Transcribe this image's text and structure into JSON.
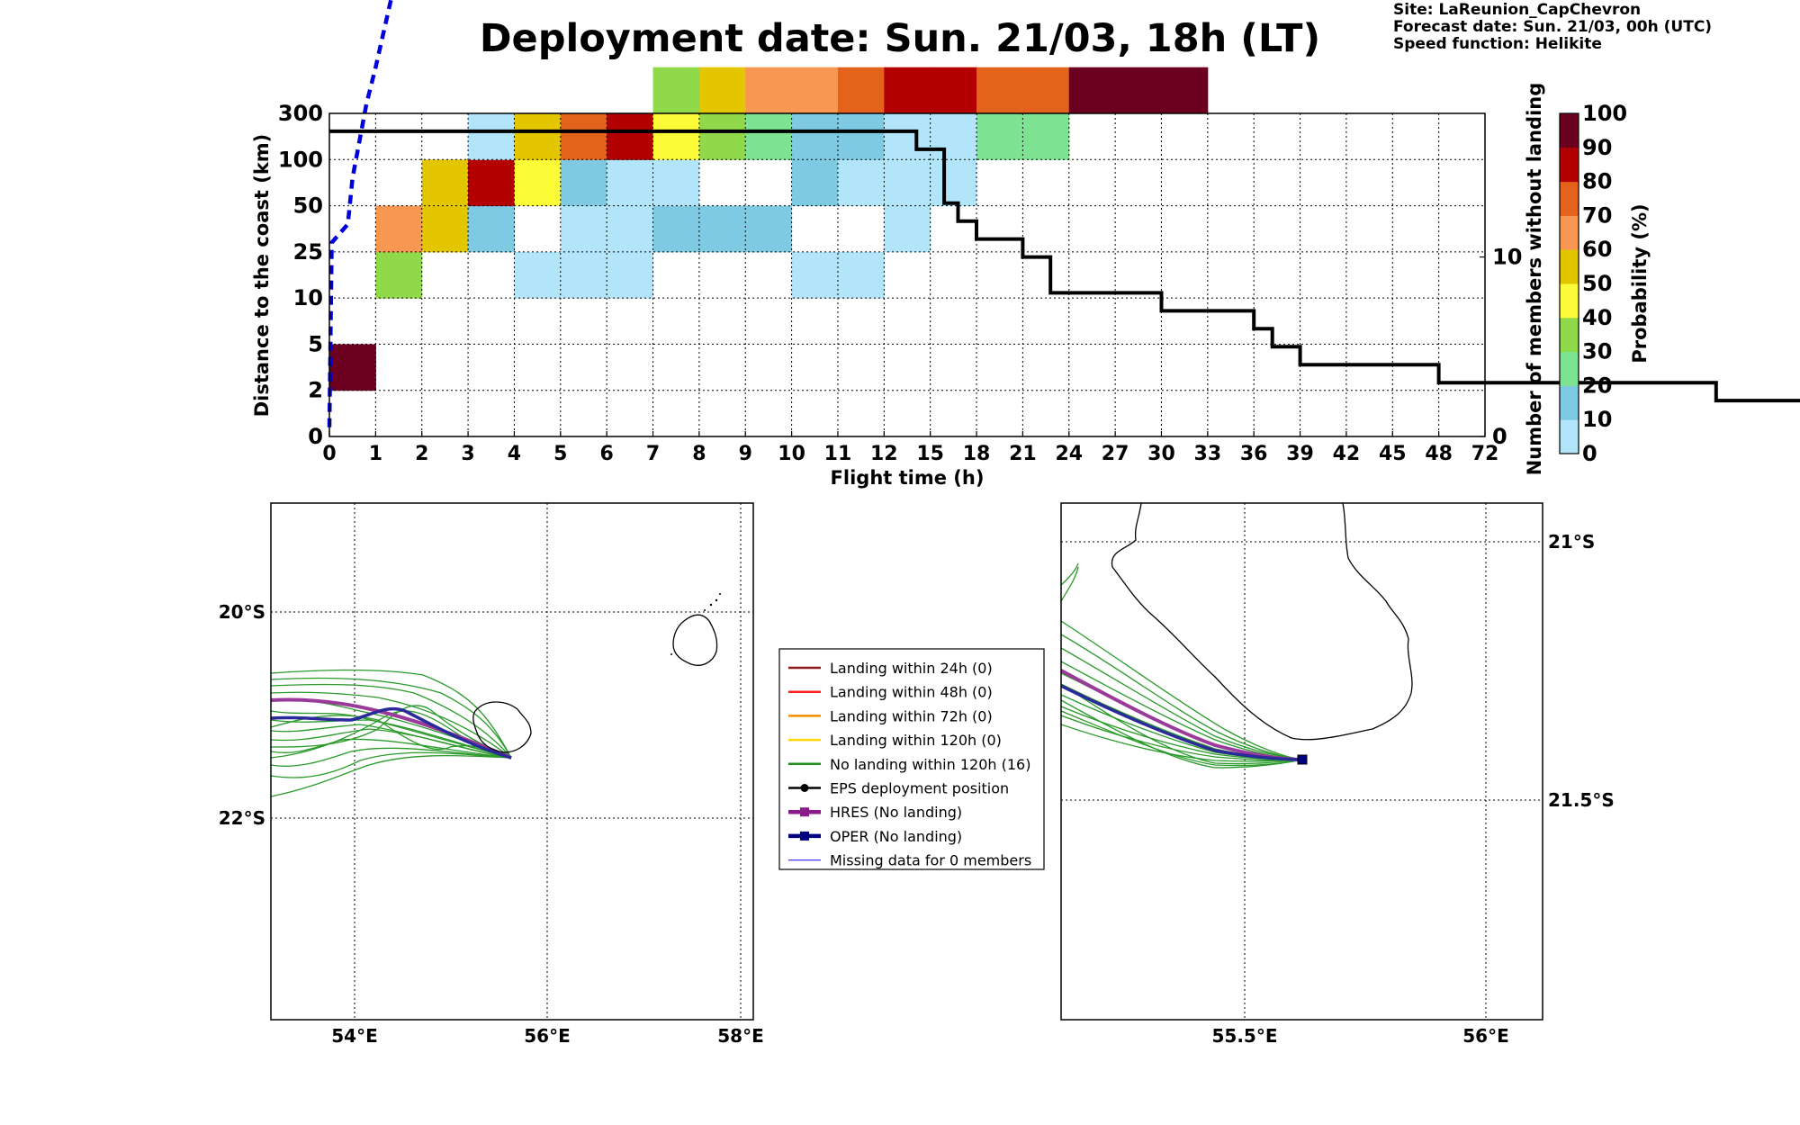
{
  "header": {
    "title": "Deployment date: Sun. 21/03, 18h (LT)",
    "site": "Site: LaReunion_CapChevron",
    "forecast": "Forecast date: Sun. 21/03, 00h (UTC)",
    "speed": "Speed function: Helikite"
  },
  "chart_data": [
    {
      "type": "heatmap",
      "xlabel": "Flight time (h)",
      "ylabel": "Distance to the coast (km)",
      "y2label": "Number of members without landing",
      "x_ticks": [
        "0",
        "1",
        "2",
        "3",
        "4",
        "5",
        "6",
        "7",
        "8",
        "9",
        "10",
        "11",
        "12",
        "15",
        "18",
        "21",
        "24",
        "27",
        "30",
        "33",
        "36",
        "39",
        "42",
        "45",
        "48",
        "72"
      ],
      "y_ticks": [
        "0",
        "2",
        "5",
        "10",
        "25",
        "50",
        "100",
        "300"
      ],
      "y2_ticks": [
        "0",
        "10"
      ],
      "y2_range": [
        0,
        18
      ],
      "colorbar": {
        "label": "Probability (%)",
        "ticks": [
          "0",
          "10",
          "20",
          "30",
          "40",
          "50",
          "60",
          "70",
          "80",
          "90",
          "100"
        ],
        "colors": [
          "#b3e5fa",
          "#7ecae3",
          "#7de393",
          "#8fd94a",
          "#fbfb37",
          "#e3c600",
          "#f89751",
          "#e3621c",
          "#b30000",
          "#6b0021"
        ]
      },
      "cells": [
        {
          "x": 0,
          "y": 1,
          "p": 95
        },
        {
          "x": 1,
          "y": 3,
          "p": 35
        },
        {
          "x": 1,
          "y": 4,
          "p": 65
        },
        {
          "x": 2,
          "y": 4,
          "p": 55
        },
        {
          "x": 2,
          "y": 5,
          "p": 55
        },
        {
          "x": 3,
          "y": 4,
          "p": 15
        },
        {
          "x": 3,
          "y": 5,
          "p": 85
        },
        {
          "x": 3,
          "y": 6,
          "p": 5
        },
        {
          "x": 4,
          "y": 3,
          "p": 5
        },
        {
          "x": 4,
          "y": 5,
          "p": 45
        },
        {
          "x": 4,
          "y": 6,
          "p": 55
        },
        {
          "x": 5,
          "y": 3,
          "p": 5
        },
        {
          "x": 5,
          "y": 4,
          "p": 5
        },
        {
          "x": 5,
          "y": 5,
          "p": 15
        },
        {
          "x": 5,
          "y": 6,
          "p": 75
        },
        {
          "x": 6,
          "y": 3,
          "p": 5
        },
        {
          "x": 6,
          "y": 4,
          "p": 5
        },
        {
          "x": 6,
          "y": 5,
          "p": 5
        },
        {
          "x": 6,
          "y": 6,
          "p": 85
        },
        {
          "x": 7,
          "y": 4,
          "p": 15
        },
        {
          "x": 7,
          "y": 5,
          "p": 5
        },
        {
          "x": 7,
          "y": 6,
          "p": 45
        },
        {
          "x": 7,
          "y": 7,
          "p": 35
        },
        {
          "x": 8,
          "y": 4,
          "p": 15
        },
        {
          "x": 8,
          "y": 6,
          "p": 35
        },
        {
          "x": 8,
          "y": 7,
          "p": 55
        },
        {
          "x": 9,
          "y": 4,
          "p": 15
        },
        {
          "x": 9,
          "y": 6,
          "p": 25
        },
        {
          "x": 9,
          "y": 7,
          "p": 65
        },
        {
          "x": 10,
          "y": 3,
          "p": 5
        },
        {
          "x": 10,
          "y": 5,
          "p": 15
        },
        {
          "x": 10,
          "y": 6,
          "p": 15
        },
        {
          "x": 10,
          "y": 7,
          "p": 65
        },
        {
          "x": 11,
          "y": 3,
          "p": 5
        },
        {
          "x": 11,
          "y": 5,
          "p": 5
        },
        {
          "x": 11,
          "y": 6,
          "p": 15
        },
        {
          "x": 11,
          "y": 7,
          "p": 75
        },
        {
          "x": 12,
          "y": 4,
          "p": 5
        },
        {
          "x": 12,
          "y": 5,
          "p": 5
        },
        {
          "x": 12,
          "y": 6,
          "p": 5
        },
        {
          "x": 12,
          "y": 7,
          "p": 85
        },
        {
          "x": 13,
          "y": 5,
          "p": 5
        },
        {
          "x": 13,
          "y": 6,
          "p": 5
        },
        {
          "x": 13,
          "y": 7,
          "p": 85
        },
        {
          "x": 14,
          "y": 6,
          "p": 25
        },
        {
          "x": 14,
          "y": 7,
          "p": 75
        },
        {
          "x": 15,
          "y": 6,
          "p": 25
        },
        {
          "x": 15,
          "y": 7,
          "p": 75
        },
        {
          "x": 16,
          "y": 7,
          "p": 95
        },
        {
          "x": 17,
          "y": 7,
          "p": 95
        },
        {
          "x": 18,
          "y": 7,
          "p": 95
        }
      ],
      "series": [
        {
          "name": "",
          "style": "dashed",
          "color": "#0000dd",
          "points": [
            [
              0,
              0.2
            ],
            [
              0.05,
              4.2
            ],
            [
              0.4,
              4.6
            ],
            [
              0.5,
              5.6
            ],
            [
              0.8,
              7.2
            ],
            [
              1.0,
              8.0
            ],
            [
              1.5,
              10.2
            ],
            [
              2.0,
              12.4
            ],
            [
              2.5,
              13.8
            ],
            [
              3.0,
              14.7
            ],
            [
              3.5,
              15.3
            ],
            [
              4.0,
              16.2
            ],
            [
              4.5,
              16.8
            ],
            [
              5.0,
              17.2
            ],
            [
              6.0,
              17.5
            ],
            [
              7.0,
              17.7
            ],
            [
              8.0,
              17.8
            ],
            [
              9.0,
              17.9
            ],
            [
              10.0,
              18.05
            ],
            [
              11.0,
              18.3
            ],
            [
              12.0,
              18.6
            ],
            [
              12.2,
              18.8
            ]
          ]
        },
        {
          "name": "",
          "style": "step",
          "color": "#000000",
          "y2": true,
          "points": [
            [
              0,
              17
            ],
            [
              12.7,
              17
            ],
            [
              12.7,
              16
            ],
            [
              13.3,
              16
            ],
            [
              13.3,
              13
            ],
            [
              13.6,
              13
            ],
            [
              13.6,
              12
            ],
            [
              14.0,
              12
            ],
            [
              14.0,
              11
            ],
            [
              15.0,
              11
            ],
            [
              15.0,
              10
            ],
            [
              15.6,
              10
            ],
            [
              15.6,
              8
            ],
            [
              18.0,
              8
            ],
            [
              18.0,
              7
            ],
            [
              20.0,
              7
            ],
            [
              20.0,
              6
            ],
            [
              20.4,
              6
            ],
            [
              20.4,
              5
            ],
            [
              21.0,
              5
            ],
            [
              21.0,
              4
            ],
            [
              24.0,
              4
            ],
            [
              24.0,
              3
            ],
            [
              30.0,
              3
            ],
            [
              30.0,
              2
            ],
            [
              32.0,
              2
            ],
            [
              32.0,
              1
            ],
            [
              72,
              1
            ]
          ]
        }
      ]
    }
  ],
  "maps": {
    "left": {
      "lon_labels": [
        "54°E",
        "56°E",
        "58°E"
      ],
      "lat_labels": [
        "20°S",
        "22°S"
      ]
    },
    "right": {
      "lon_labels": [
        "55.5°E",
        "56°E"
      ],
      "lat_labels": [
        "21°S",
        "21.5°S"
      ]
    }
  },
  "legend": [
    {
      "label": "Landing within 24h (0)",
      "color": "#8b1a1a",
      "style": "line"
    },
    {
      "label": "Landing within 48h (0)",
      "color": "#ff2020",
      "style": "line"
    },
    {
      "label": "Landing within 72h (0)",
      "color": "#ff8c00",
      "style": "line"
    },
    {
      "label": "Landing within 120h (0)",
      "color": "#ffd700",
      "style": "line"
    },
    {
      "label": "No landing within 120h (16)",
      "color": "#1e8c1e",
      "style": "line"
    },
    {
      "label": "EPS deployment position",
      "color": "#000000",
      "style": "dot"
    },
    {
      "label": "HRES (No landing)",
      "color": "#8b1a8b",
      "style": "square"
    },
    {
      "label": "OPER (No landing)",
      "color": "#000080",
      "style": "square"
    },
    {
      "label": "Missing data for 0 members",
      "color": "#3a3aff",
      "style": "thin"
    }
  ]
}
